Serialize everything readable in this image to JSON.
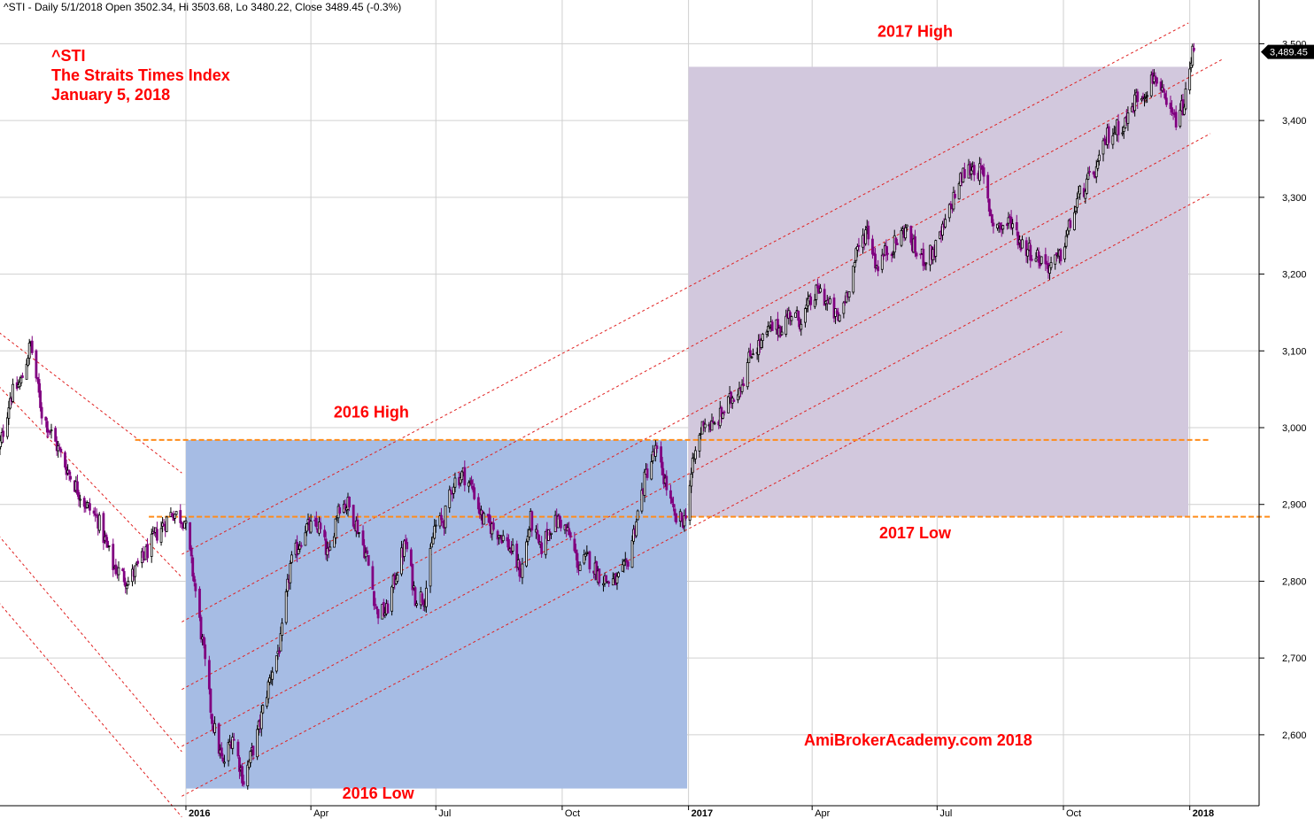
{
  "header": {
    "info": "^STI - Daily 5/1/2018 Open 3502.34, Hi 3503.68, Lo 3480.22, Close 3489.45 (-0.3%)"
  },
  "title_block": {
    "symbol": "^STI",
    "name": "The Straits Times Index",
    "date": "January 5, 2018"
  },
  "watermark": "AmiBrokerAcademy.com  2018",
  "colors": {
    "bull_candle": "#000000",
    "bear_candle": "#800080",
    "zone_2016": "#a6bce4",
    "zone_2017": "#d2c8dd",
    "level_line": "#ff8c1a",
    "channel_line": "#e02020",
    "annotation": "#ff0000",
    "grid": "#d0d0d0"
  },
  "chart_data": {
    "type": "candlestick",
    "y_axis": {
      "min": 2500,
      "max": 3530,
      "ticks": [
        2600,
        2700,
        2800,
        2900,
        3000,
        3100,
        3200,
        3300,
        3400,
        3500
      ],
      "tick_labels": [
        "2,600",
        "2,700",
        "2,800",
        "2,900",
        "3,000",
        "3,100",
        "3,200",
        "3,300",
        "3,400",
        "3,500"
      ],
      "side": "right"
    },
    "x_axis": {
      "start": "2015-08-15",
      "end": "2018-03-01",
      "ticks": [
        {
          "date": "2016-01-01",
          "label": "2016",
          "bold": true
        },
        {
          "date": "2016-04-01",
          "label": "Apr",
          "bold": false
        },
        {
          "date": "2016-07-01",
          "label": "Jul",
          "bold": false
        },
        {
          "date": "2016-10-01",
          "label": "Oct",
          "bold": false
        },
        {
          "date": "2017-01-01",
          "label": "2017",
          "bold": true
        },
        {
          "date": "2017-04-01",
          "label": "Apr",
          "bold": false
        },
        {
          "date": "2017-07-01",
          "label": "Jul",
          "bold": false
        },
        {
          "date": "2017-10-01",
          "label": "Oct",
          "bold": false
        },
        {
          "date": "2018-01-01",
          "label": "2018",
          "bold": true
        }
      ]
    },
    "grid": true,
    "last_close": 3489.45,
    "last_close_label": "3,489.45",
    "price_path": [
      [
        "2015-08-17",
        2960
      ],
      [
        "2015-08-26",
        3040
      ],
      [
        "2015-09-03",
        3060
      ],
      [
        "2015-09-10",
        3110
      ],
      [
        "2015-09-18",
        3020
      ],
      [
        "2015-09-28",
        2980
      ],
      [
        "2015-10-08",
        2940
      ],
      [
        "2015-10-20",
        2900
      ],
      [
        "2015-10-29",
        2880
      ],
      [
        "2015-11-09",
        2820
      ],
      [
        "2015-11-20",
        2800
      ],
      [
        "2015-12-01",
        2830
      ],
      [
        "2015-12-10",
        2860
      ],
      [
        "2015-12-22",
        2890
      ],
      [
        "2015-12-31",
        2880
      ],
      [
        "2016-01-07",
        2800
      ],
      [
        "2016-01-13",
        2720
      ],
      [
        "2016-01-20",
        2620
      ],
      [
        "2016-01-28",
        2560
      ],
      [
        "2016-02-04",
        2600
      ],
      [
        "2016-02-12",
        2540
      ],
      [
        "2016-02-22",
        2600
      ],
      [
        "2016-03-03",
        2680
      ],
      [
        "2016-03-10",
        2720
      ],
      [
        "2016-03-17",
        2820
      ],
      [
        "2016-03-28",
        2870
      ],
      [
        "2016-04-07",
        2870
      ],
      [
        "2016-04-14",
        2830
      ],
      [
        "2016-04-21",
        2900
      ],
      [
        "2016-04-28",
        2900
      ],
      [
        "2016-05-05",
        2870
      ],
      [
        "2016-05-12",
        2830
      ],
      [
        "2016-05-19",
        2760
      ],
      [
        "2016-05-26",
        2760
      ],
      [
        "2016-06-02",
        2810
      ],
      [
        "2016-06-09",
        2850
      ],
      [
        "2016-06-16",
        2780
      ],
      [
        "2016-06-23",
        2780
      ],
      [
        "2016-06-30",
        2870
      ],
      [
        "2016-07-07",
        2880
      ],
      [
        "2016-07-14",
        2930
      ],
      [
        "2016-07-21",
        2940
      ],
      [
        "2016-07-28",
        2920
      ],
      [
        "2016-08-04",
        2880
      ],
      [
        "2016-08-11",
        2870
      ],
      [
        "2016-08-18",
        2860
      ],
      [
        "2016-08-25",
        2840
      ],
      [
        "2016-09-01",
        2810
      ],
      [
        "2016-09-08",
        2880
      ],
      [
        "2016-09-15",
        2840
      ],
      [
        "2016-09-22",
        2870
      ],
      [
        "2016-09-29",
        2880
      ],
      [
        "2016-10-06",
        2860
      ],
      [
        "2016-10-13",
        2820
      ],
      [
        "2016-10-20",
        2830
      ],
      [
        "2016-10-27",
        2810
      ],
      [
        "2016-11-03",
        2800
      ],
      [
        "2016-11-10",
        2800
      ],
      [
        "2016-11-17",
        2820
      ],
      [
        "2016-11-24",
        2880
      ],
      [
        "2016-12-01",
        2940
      ],
      [
        "2016-12-08",
        2970
      ],
      [
        "2016-12-15",
        2930
      ],
      [
        "2016-12-22",
        2880
      ],
      [
        "2016-12-29",
        2880
      ],
      [
        "2017-01-05",
        2960
      ],
      [
        "2017-01-12",
        3010
      ],
      [
        "2017-01-19",
        3000
      ],
      [
        "2017-01-26",
        3020
      ],
      [
        "2017-02-02",
        3040
      ],
      [
        "2017-02-09",
        3060
      ],
      [
        "2017-02-16",
        3100
      ],
      [
        "2017-02-23",
        3110
      ],
      [
        "2017-03-02",
        3130
      ],
      [
        "2017-03-09",
        3130
      ],
      [
        "2017-03-16",
        3150
      ],
      [
        "2017-03-23",
        3140
      ],
      [
        "2017-03-30",
        3160
      ],
      [
        "2017-04-06",
        3180
      ],
      [
        "2017-04-13",
        3160
      ],
      [
        "2017-04-20",
        3140
      ],
      [
        "2017-04-27",
        3180
      ],
      [
        "2017-05-04",
        3230
      ],
      [
        "2017-05-11",
        3260
      ],
      [
        "2017-05-18",
        3210
      ],
      [
        "2017-05-25",
        3230
      ],
      [
        "2017-06-01",
        3240
      ],
      [
        "2017-06-08",
        3260
      ],
      [
        "2017-06-15",
        3230
      ],
      [
        "2017-06-22",
        3220
      ],
      [
        "2017-06-29",
        3230
      ],
      [
        "2017-07-06",
        3260
      ],
      [
        "2017-07-13",
        3300
      ],
      [
        "2017-07-20",
        3330
      ],
      [
        "2017-07-27",
        3340
      ],
      [
        "2017-08-03",
        3330
      ],
      [
        "2017-08-10",
        3270
      ],
      [
        "2017-08-17",
        3260
      ],
      [
        "2017-08-24",
        3270
      ],
      [
        "2017-08-31",
        3240
      ],
      [
        "2017-09-07",
        3230
      ],
      [
        "2017-09-14",
        3220
      ],
      [
        "2017-09-21",
        3210
      ],
      [
        "2017-09-28",
        3220
      ],
      [
        "2017-10-05",
        3260
      ],
      [
        "2017-10-12",
        3300
      ],
      [
        "2017-10-19",
        3320
      ],
      [
        "2017-10-26",
        3340
      ],
      [
        "2017-11-02",
        3380
      ],
      [
        "2017-11-09",
        3390
      ],
      [
        "2017-11-16",
        3400
      ],
      [
        "2017-11-23",
        3430
      ],
      [
        "2017-11-30",
        3440
      ],
      [
        "2017-12-07",
        3460
      ],
      [
        "2017-12-14",
        3420
      ],
      [
        "2017-12-21",
        3400
      ],
      [
        "2017-12-28",
        3420
      ],
      [
        "2018-01-04",
        3500
      ]
    ],
    "annotations": [
      {
        "text": "2016 High",
        "date": "2016-05-15",
        "value": 3013
      },
      {
        "text": "2016 Low",
        "date": "2016-05-20",
        "value": 2517
      },
      {
        "text": "2017 High",
        "date": "2017-06-15",
        "value": 3509
      },
      {
        "text": "2017 Low",
        "date": "2017-06-15",
        "value": 2856
      }
    ],
    "zones": [
      {
        "name": "2016 range",
        "x_start": "2016-01-01",
        "x_end": "2016-12-31",
        "y_low": 2530,
        "y_high": 2984
      },
      {
        "name": "2017 range",
        "x_start": "2017-01-01",
        "x_end": "2017-12-31",
        "y_low": 2884,
        "y_high": 3470
      }
    ],
    "levels": [
      {
        "value": 2984,
        "x_start": "2015-11-25",
        "x_end": "2018-01-15"
      },
      {
        "value": 2884,
        "x_start": "2015-12-05",
        "x_end": "2018-03-01"
      }
    ],
    "channels": [
      {
        "start": [
          "2015-12-29",
          2835
        ],
        "end": [
          "2017-12-31",
          3527
        ]
      },
      {
        "start": [
          "2015-12-29",
          2747
        ],
        "end": [
          "2018-01-25",
          3480
        ]
      },
      {
        "start": [
          "2015-12-29",
          2659
        ],
        "end": [
          "2018-01-16",
          3383
        ]
      },
      {
        "start": [
          "2015-12-29",
          2585
        ],
        "end": [
          "2018-01-16",
          3305
        ]
      },
      {
        "start": [
          "2015-12-29",
          2520
        ],
        "end": [
          "2017-09-30",
          3125
        ]
      },
      {
        "start": [
          "2015-08-15",
          3128
        ],
        "end": [
          "2015-12-29",
          2941
        ]
      },
      {
        "start": [
          "2015-08-15",
          3059
        ],
        "end": [
          "2015-12-29",
          2805
        ]
      },
      {
        "start": [
          "2015-08-15",
          2865
        ],
        "end": [
          "2015-12-29",
          2578
        ]
      },
      {
        "start": [
          "2015-08-15",
          2778
        ],
        "end": [
          "2015-12-29",
          2493
        ]
      }
    ]
  }
}
